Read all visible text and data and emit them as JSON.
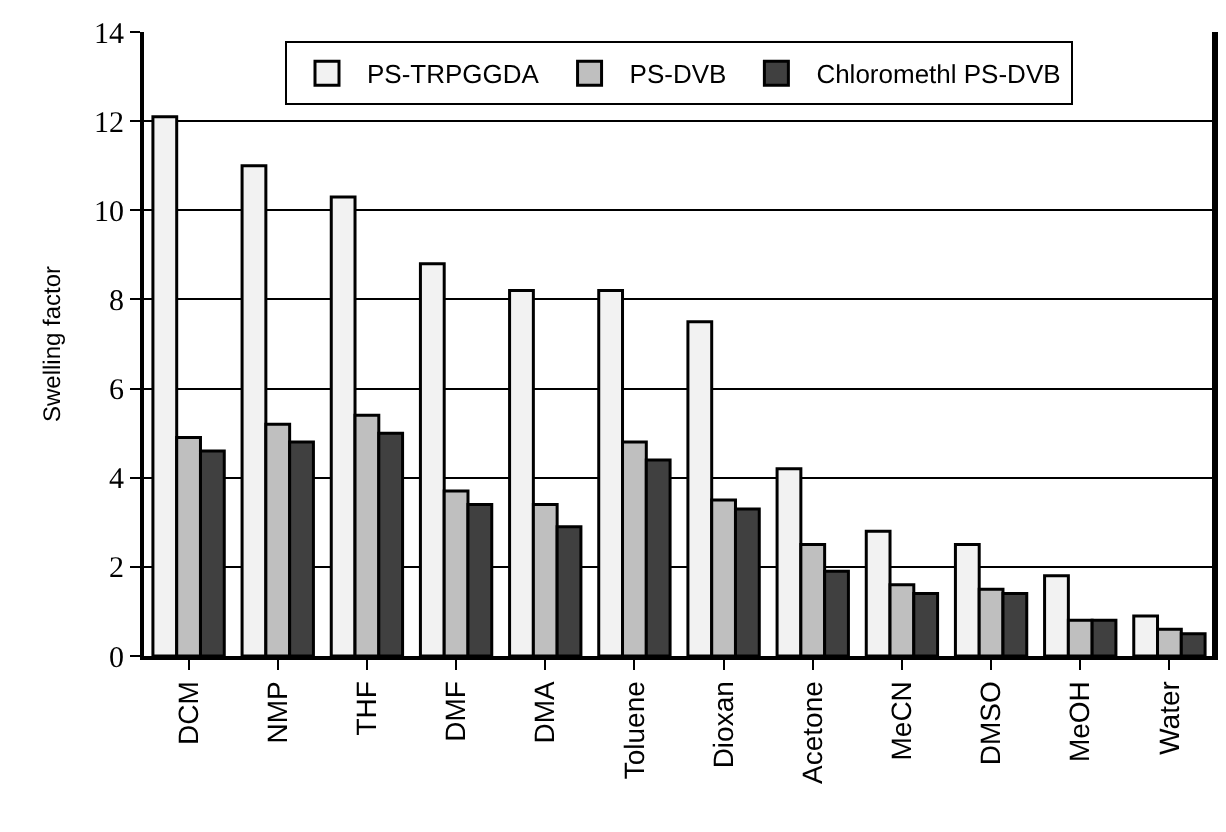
{
  "chart_data": {
    "type": "bar",
    "ylabel": "Swelling factor",
    "categories": [
      "DCM",
      "NMP",
      "THF",
      "DMF",
      "DMA",
      "Toluene",
      "Dioxan",
      "Acetone",
      "MeCN",
      "DMSO",
      "MeOH",
      "Water"
    ],
    "series": [
      {
        "name": "PS-TRPGGDA",
        "color": "#f2f2f2",
        "values": [
          12.1,
          11.0,
          10.3,
          8.8,
          8.2,
          8.2,
          7.5,
          4.2,
          2.8,
          2.5,
          1.8,
          0.9
        ]
      },
      {
        "name": "PS-DVB",
        "color": "#bfbfbf",
        "values": [
          4.9,
          5.2,
          5.4,
          3.7,
          3.4,
          4.8,
          3.5,
          2.5,
          1.6,
          1.5,
          0.8,
          0.6
        ]
      },
      {
        "name": "Chloromethl PS-DVB",
        "color": "#404040",
        "values": [
          4.6,
          4.8,
          5.0,
          3.4,
          2.9,
          4.4,
          3.3,
          1.9,
          1.4,
          1.4,
          0.8,
          0.5
        ]
      }
    ],
    "ylim": [
      0,
      14
    ],
    "yticks": [
      0,
      2,
      4,
      6,
      8,
      10,
      12,
      14
    ],
    "grid": "y",
    "legend": "top"
  }
}
